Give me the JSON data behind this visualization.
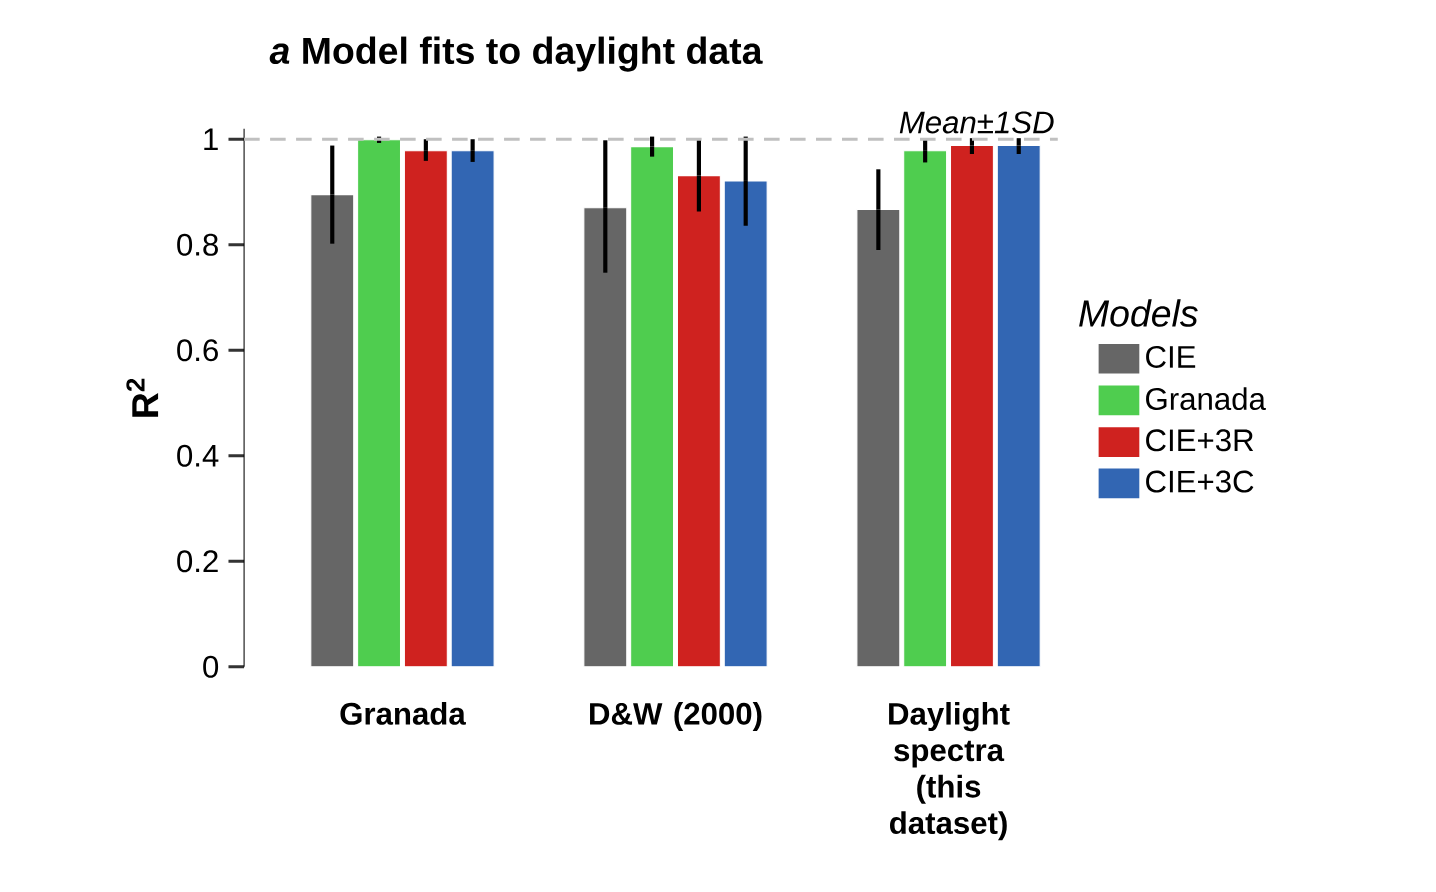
{
  "chart_data": {
    "type": "bar",
    "title": "*a* Model fits to daylight data",
    "ylabel": "R$^{2}$",
    "legend_title": "Models",
    "legend": "right",
    "categories": [
      "Granada",
      "D&W (2000)",
      "Daylight spectra (this dataset)"
    ],
    "ylim": [
      0,
      1.02
    ],
    "yticks": [
      0,
      0.2,
      0.4,
      0.6,
      0.8,
      1
    ],
    "series": [
      {
        "name": "CIE",
        "color": "#666666",
        "values": [
          0.895,
          0.87,
          0.867
        ],
        "errors": [
          [
            0.802,
            0.988
          ],
          [
            0.747,
            0.998
          ],
          [
            0.79,
            0.943
          ]
        ]
      },
      {
        "name": "Granada",
        "color": "#4fcd4f",
        "values": [
          0.999,
          0.986,
          0.978
        ],
        "errors": [
          [
            0.993,
            1.005
          ],
          [
            0.967,
            1.005
          ],
          [
            0.956,
            1.002
          ]
        ]
      },
      {
        "name": "CIE+3R",
        "color": "#cf221f",
        "values": [
          0.978,
          0.931,
          0.988
        ],
        "errors": [
          [
            0.959,
            1.0
          ],
          [
            0.863,
            1.0
          ],
          [
            0.972,
            1.002
          ]
        ]
      },
      {
        "name": "CIE+3C",
        "color": "#3266b3",
        "values": [
          0.978,
          0.921,
          0.988
        ],
        "errors": [
          [
            0.957,
            1.0
          ],
          [
            0.836,
            1.005
          ],
          [
            0.972,
            1.002
          ]
        ]
      }
    ],
    "ref_lines": [
      {
        "axis": "y",
        "value": 1,
        "color": "#c0c0c0",
        "line_style": "dashed"
      }
    ],
    "annotations": [
      "Mean±1SD"
    ]
  }
}
